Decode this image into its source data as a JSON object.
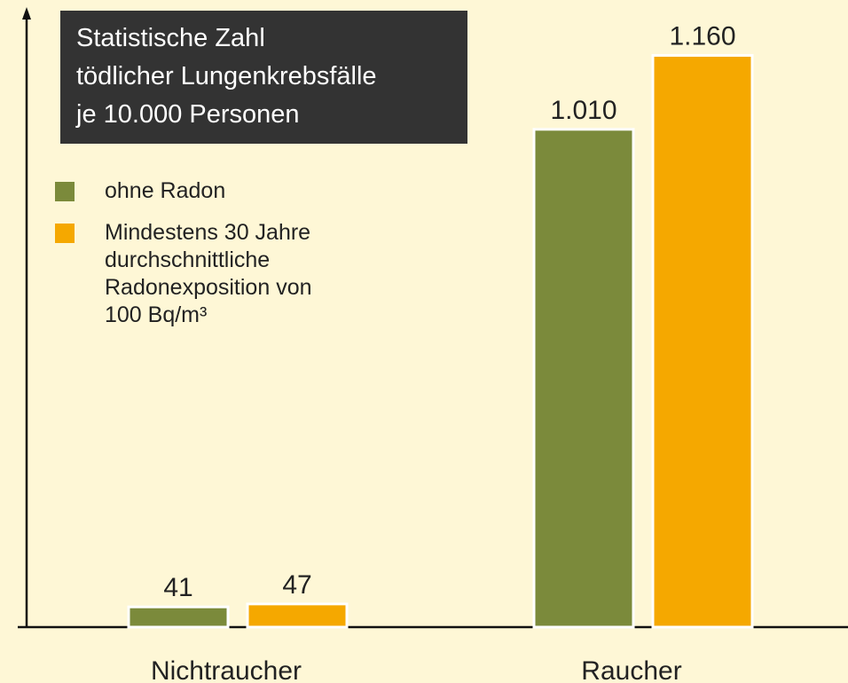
{
  "chart_data": {
    "type": "bar",
    "title": "Statistische Zahl\ntödlicher Lungenkrebsfälle\nje 10.000 Personen",
    "categories": [
      "Nichtraucher",
      "Raucher"
    ],
    "series": [
      {
        "name": "ohne Radon",
        "color": "#7b8a3b",
        "values": [
          41,
          1010
        ],
        "value_labels": [
          "41",
          "1.010"
        ]
      },
      {
        "name": "Mindestens 30 Jahre\ndurchschnittliche\nRadonexposition von\n100 Bq/m³",
        "color": "#f5a800",
        "values": [
          47,
          1160
        ],
        "value_labels": [
          "47",
          "1.160"
        ]
      }
    ],
    "ylim": [
      0,
      1240
    ]
  }
}
